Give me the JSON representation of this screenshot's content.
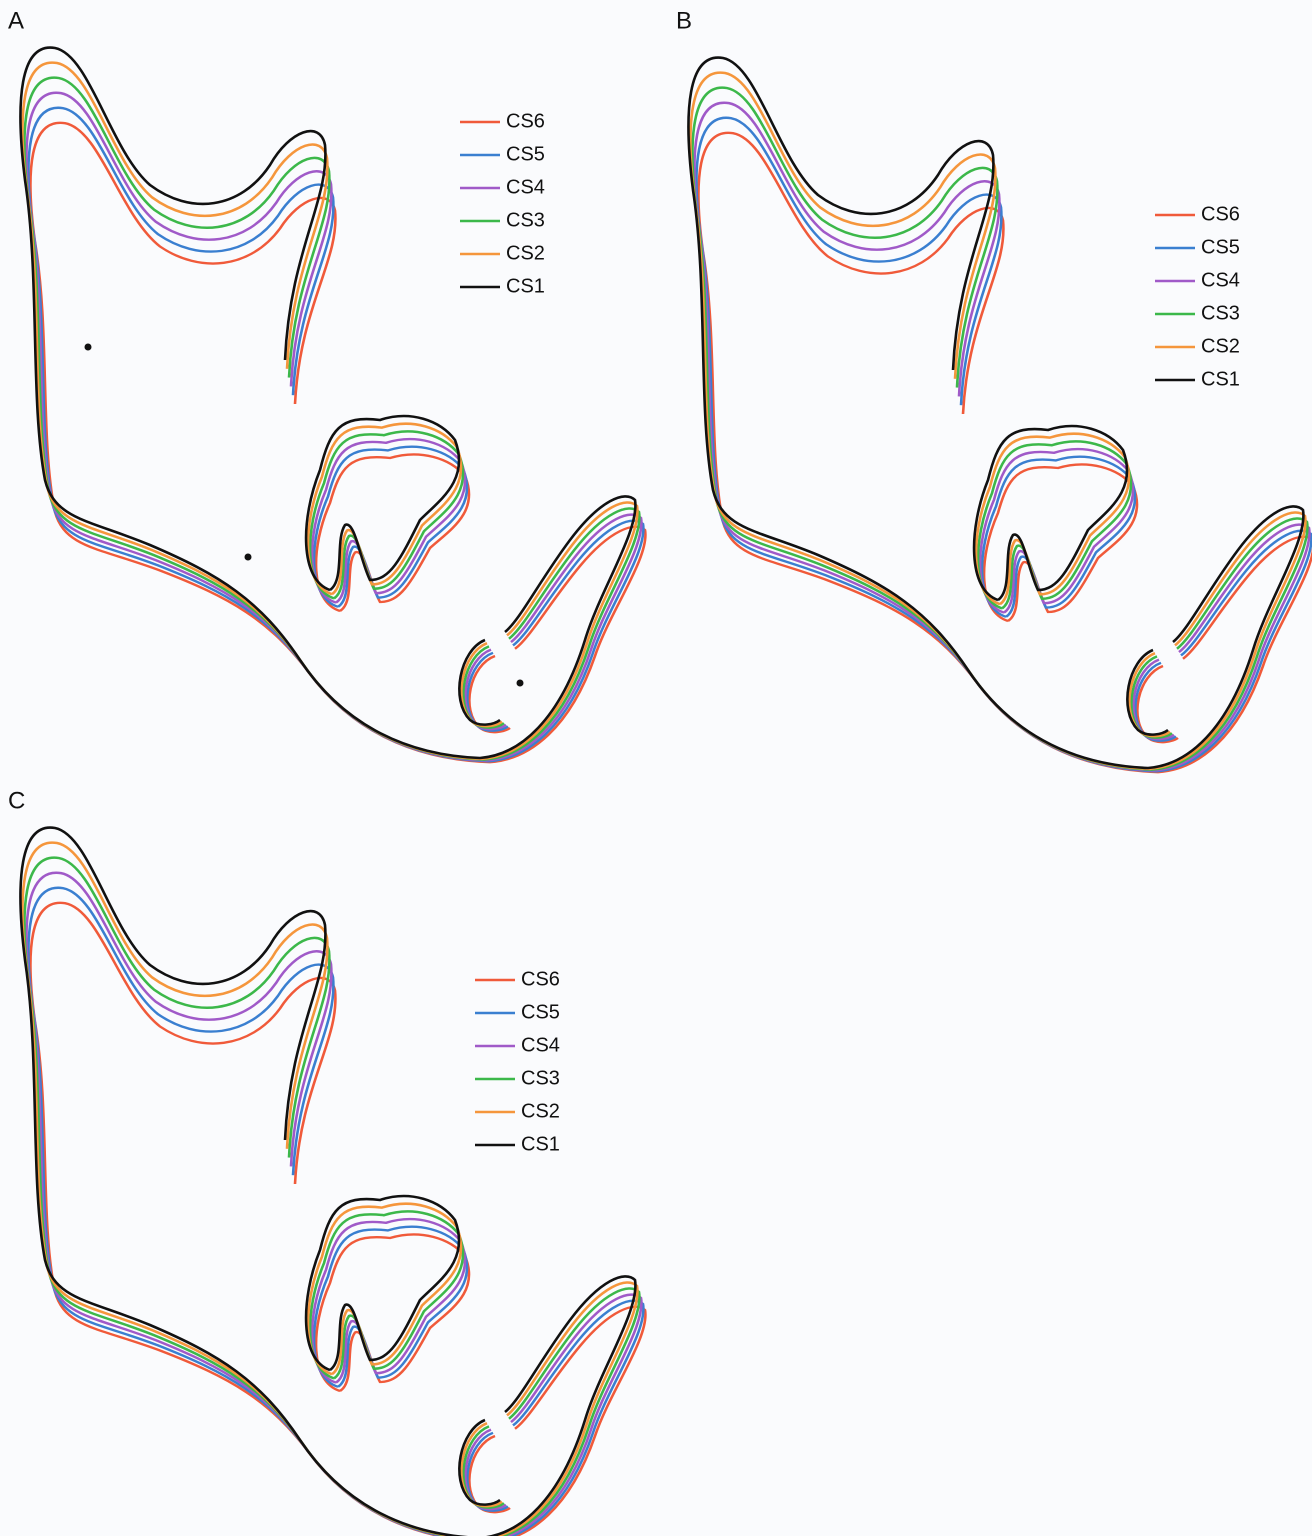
{
  "panels": [
    {
      "label": "A",
      "legend": [
        {
          "name": "CS6",
          "color": "#f05a3a"
        },
        {
          "name": "CS5",
          "color": "#3a7fd0"
        },
        {
          "name": "CS4",
          "color": "#a05ac8"
        },
        {
          "name": "CS3",
          "color": "#3cb84a"
        },
        {
          "name": "CS2",
          "color": "#f5963c"
        },
        {
          "name": "CS1",
          "color": "#111111"
        }
      ]
    },
    {
      "label": "B",
      "legend": [
        {
          "name": "CS6",
          "color": "#f05a3a"
        },
        {
          "name": "CS5",
          "color": "#3a7fd0"
        },
        {
          "name": "CS4",
          "color": "#a05ac8"
        },
        {
          "name": "CS3",
          "color": "#3cb84a"
        },
        {
          "name": "CS2",
          "color": "#f5963c"
        },
        {
          "name": "CS1",
          "color": "#111111"
        }
      ]
    },
    {
      "label": "C",
      "legend": [
        {
          "name": "CS6",
          "color": "#f05a3a"
        },
        {
          "name": "CS5",
          "color": "#3a7fd0"
        },
        {
          "name": "CS4",
          "color": "#a05ac8"
        },
        {
          "name": "CS3",
          "color": "#3cb84a"
        },
        {
          "name": "CS2",
          "color": "#f5963c"
        },
        {
          "name": "CS1",
          "color": "#111111"
        }
      ]
    }
  ]
}
